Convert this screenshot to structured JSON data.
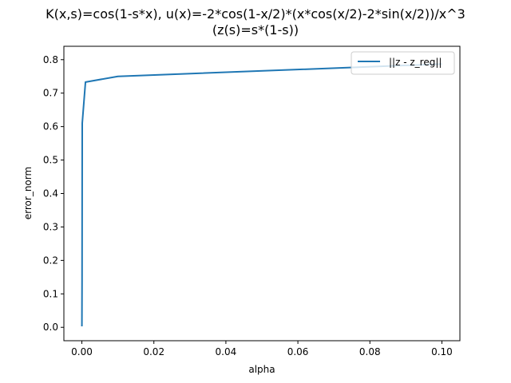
{
  "chart_data": {
    "type": "line",
    "title_line1": "K(x,s)=cos(1-s*x), u(x)=-2*cos(1-x/2)*(x*cos(x/2)-2*sin(x/2))/x^3",
    "title_line2": "(z(s)=s*(1-s))",
    "xlabel": "alpha",
    "ylabel": "error_norm",
    "xlim": [
      -0.005,
      0.105
    ],
    "ylim": [
      -0.04,
      0.84
    ],
    "x_ticks": [
      0.0,
      0.02,
      0.04,
      0.06,
      0.08,
      0.1
    ],
    "x_tick_labels": [
      "0.00",
      "0.02",
      "0.04",
      "0.06",
      "0.08",
      "0.10"
    ],
    "y_ticks": [
      0.0,
      0.1,
      0.2,
      0.3,
      0.4,
      0.5,
      0.6,
      0.7,
      0.8
    ],
    "y_tick_labels": [
      "0.0",
      "0.1",
      "0.2",
      "0.3",
      "0.4",
      "0.5",
      "0.6",
      "0.7",
      "0.8"
    ],
    "grid": false,
    "legend_position": "top-right",
    "series": [
      {
        "name": "||z - z_reg||",
        "color": "#1f77b4",
        "x": [
          0.0,
          1e-05,
          2e-05,
          5e-05,
          0.0001,
          0.001,
          0.01,
          0.1
        ],
        "y": [
          0.003,
          0.01,
          0.05,
          0.135,
          0.61,
          0.733,
          0.75,
          0.787
        ]
      }
    ]
  }
}
